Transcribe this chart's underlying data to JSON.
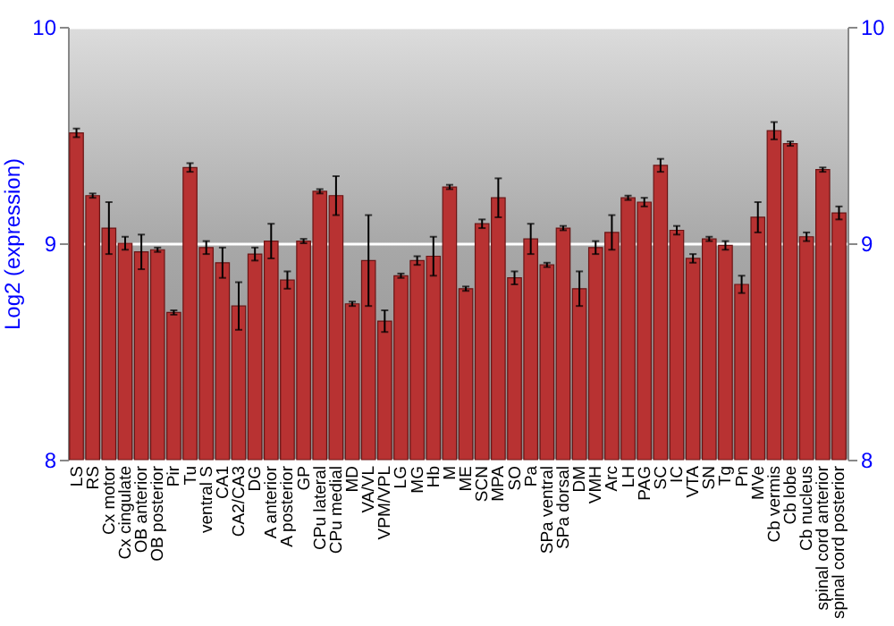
{
  "chart_data": {
    "type": "bar",
    "ylabel": "Log2 (expression)",
    "categories": [
      "LS",
      "RS",
      "Cx motor",
      "Cx cingulate",
      "OB anterior",
      "OB posterior",
      "Pir",
      "Tu",
      "ventral S",
      "CA1",
      "CA2/CA3",
      "DG",
      "A anterior",
      "A posterior",
      "GP",
      "CPu lateral",
      "CPu medial",
      "MD",
      "VA/VL",
      "VPM/VPL",
      "LG",
      "MG",
      "Hb",
      "M",
      "ME",
      "SCN",
      "MPA",
      "SO",
      "Pa",
      "SPa ventral",
      "SPa dorsal",
      "DM",
      "VMH",
      "Arc",
      "LH",
      "PAG",
      "SC",
      "IC",
      "VTA",
      "SN",
      "Tg",
      "Pn",
      "MVe",
      "Cb vermis",
      "Cb lobe",
      "Cb nucleus",
      "spinal cord anterior",
      "spinal cord posterior"
    ],
    "series": [
      {
        "color": "#b83232",
        "values": [
          9.51,
          9.22,
          9.07,
          9.0,
          8.96,
          8.97,
          8.68,
          9.35,
          8.98,
          8.91,
          8.71,
          8.95,
          9.01,
          8.83,
          9.01,
          9.24,
          9.22,
          8.72,
          8.92,
          8.64,
          8.85,
          8.92,
          8.94,
          9.26,
          8.79,
          9.09,
          9.21,
          8.84,
          9.02,
          8.9,
          9.07,
          8.79,
          8.98,
          9.05,
          9.21,
          9.19,
          9.36,
          9.06,
          8.93,
          9.02,
          8.99,
          8.81,
          9.12,
          9.52,
          9.46,
          9.03,
          9.34,
          9.14
        ],
        "errors": [
          0.02,
          0.01,
          0.12,
          0.03,
          0.08,
          0.01,
          0.01,
          0.02,
          0.03,
          0.07,
          0.11,
          0.03,
          0.08,
          0.04,
          0.01,
          0.01,
          0.09,
          0.01,
          0.21,
          0.05,
          0.01,
          0.02,
          0.09,
          0.01,
          0.01,
          0.02,
          0.09,
          0.03,
          0.07,
          0.01,
          0.01,
          0.08,
          0.03,
          0.08,
          0.01,
          0.02,
          0.03,
          0.02,
          0.02,
          0.01,
          0.02,
          0.04,
          0.07,
          0.04,
          0.01,
          0.02,
          0.01,
          0.03
        ]
      }
    ],
    "ylim": [
      8,
      10
    ],
    "yticks": [
      8,
      9,
      10
    ],
    "y2lim": [
      8,
      10
    ],
    "y2ticks": [
      8,
      9,
      10
    ],
    "grid": "y"
  }
}
